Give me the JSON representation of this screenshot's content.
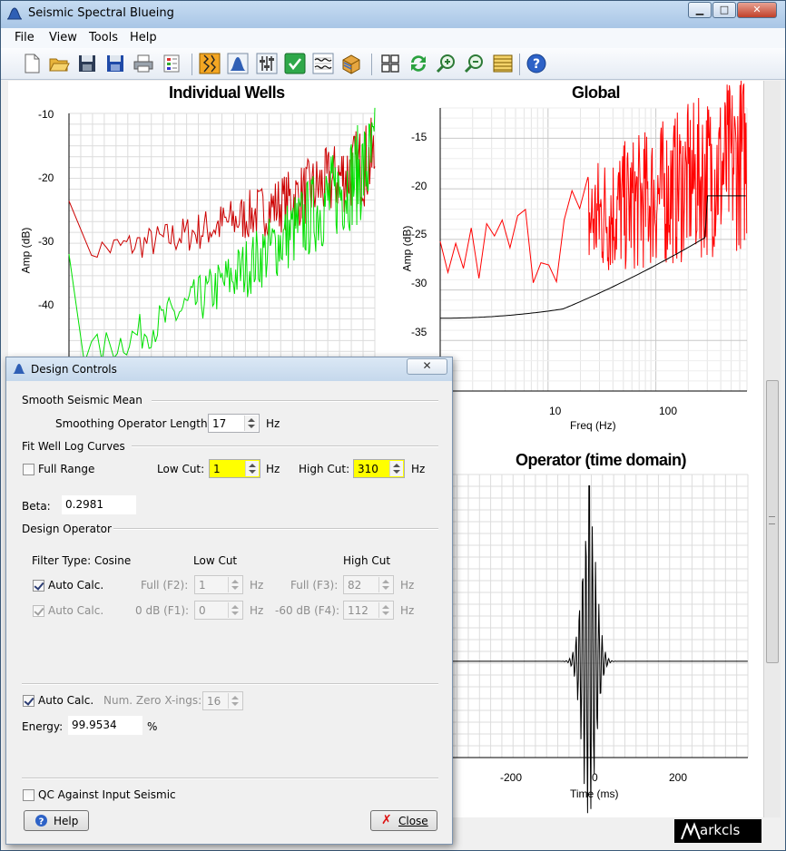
{
  "window": {
    "title": "Seismic Spectral Blueing"
  },
  "menu": [
    "File",
    "View",
    "Tools",
    "Help"
  ],
  "toolbar_icons": [
    "new-file-icon",
    "open-folder-icon",
    "save-icon",
    "save-as-icon",
    "print-icon",
    "properties-icon",
    "well-log-icon",
    "spectrum-icon",
    "sliders-icon",
    "check-icon",
    "wiggle-icon",
    "cube-icon",
    "grid-icon",
    "refresh-icon",
    "zoom-in-icon",
    "zoom-out-icon",
    "layers-icon",
    "help-icon"
  ],
  "charts": {
    "individual": {
      "title": "Individual Wells",
      "ylabel": "Amp (dB)",
      "yticks": [
        "-10",
        "-20",
        "-30",
        "-40"
      ]
    },
    "global": {
      "title": "Global",
      "ylabel": "Amp (dB)",
      "xlabel": "Freq (Hz)",
      "yticks": [
        "-15",
        "-20",
        "-25",
        "-30",
        "-35"
      ],
      "xticks": [
        "10",
        "100"
      ]
    },
    "operator": {
      "title": "Operator (time domain)",
      "xlabel": "Time (ms)",
      "xticks": [
        "-200",
        "0",
        "200"
      ]
    }
  },
  "chart_data": [
    {
      "type": "line",
      "title": "Individual Wells",
      "ylabel": "Amp (dB)",
      "ylim": [
        -47,
        -10
      ],
      "scale_x": "log",
      "series": [
        {
          "color": "#cc0000"
        },
        {
          "color": "#00e000"
        }
      ]
    },
    {
      "type": "line",
      "title": "Global",
      "xlabel": "Freq (Hz)",
      "ylabel": "Amp (dB)",
      "xlim": [
        1,
        700
      ],
      "ylim": [
        -40,
        -12
      ],
      "scale_x": "log",
      "series": [
        {
          "color": "#ff0000"
        },
        {
          "color": "#000000"
        }
      ]
    },
    {
      "type": "line",
      "title": "Operator (time domain)",
      "xlabel": "Time (ms)",
      "xlim": [
        -350,
        360
      ],
      "series": [
        {
          "color": "#000000"
        }
      ]
    }
  ],
  "dialog": {
    "title": "Design Controls",
    "smooth": {
      "group": "Smooth Seismic Mean",
      "label": "Smoothing Operator Length:",
      "value": "17",
      "unit": "Hz"
    },
    "fit": {
      "group": "Fit Well Log Curves",
      "full_range": "Full Range",
      "low_label": "Low Cut:",
      "low_value": "1",
      "low_unit": "Hz",
      "high_label": "High Cut:",
      "high_value": "310",
      "high_unit": "Hz"
    },
    "beta": {
      "label": "Beta:",
      "value": "0.2981"
    },
    "design": {
      "group": "Design Operator",
      "filter_type": "Filter Type: Cosine",
      "low_cut": "Low Cut",
      "high_cut": "High Cut",
      "auto1": "Auto Calc.",
      "full_f2_label": "Full (F2):",
      "full_f2_value": "1",
      "hz1": "Hz",
      "full_f3_label": "Full (F3):",
      "full_f3_value": "82",
      "hz2": "Hz",
      "auto2": "Auto Calc.",
      "db_f1_label": "0 dB (F1):",
      "db_f1_value": "0",
      "hz3": "Hz",
      "db_f4_label": "-60 dB (F4):",
      "db_f4_value": "112",
      "hz4": "Hz"
    },
    "zero": {
      "auto": "Auto Calc.",
      "label": "Num. Zero X-ings:",
      "value": "16"
    },
    "energy": {
      "label": "Energy:",
      "value": "99.9534",
      "unit": "%"
    },
    "qc": "QC Against Input Seismic",
    "help_button": "Help",
    "close_button": "Close"
  },
  "logo": "arkcls"
}
